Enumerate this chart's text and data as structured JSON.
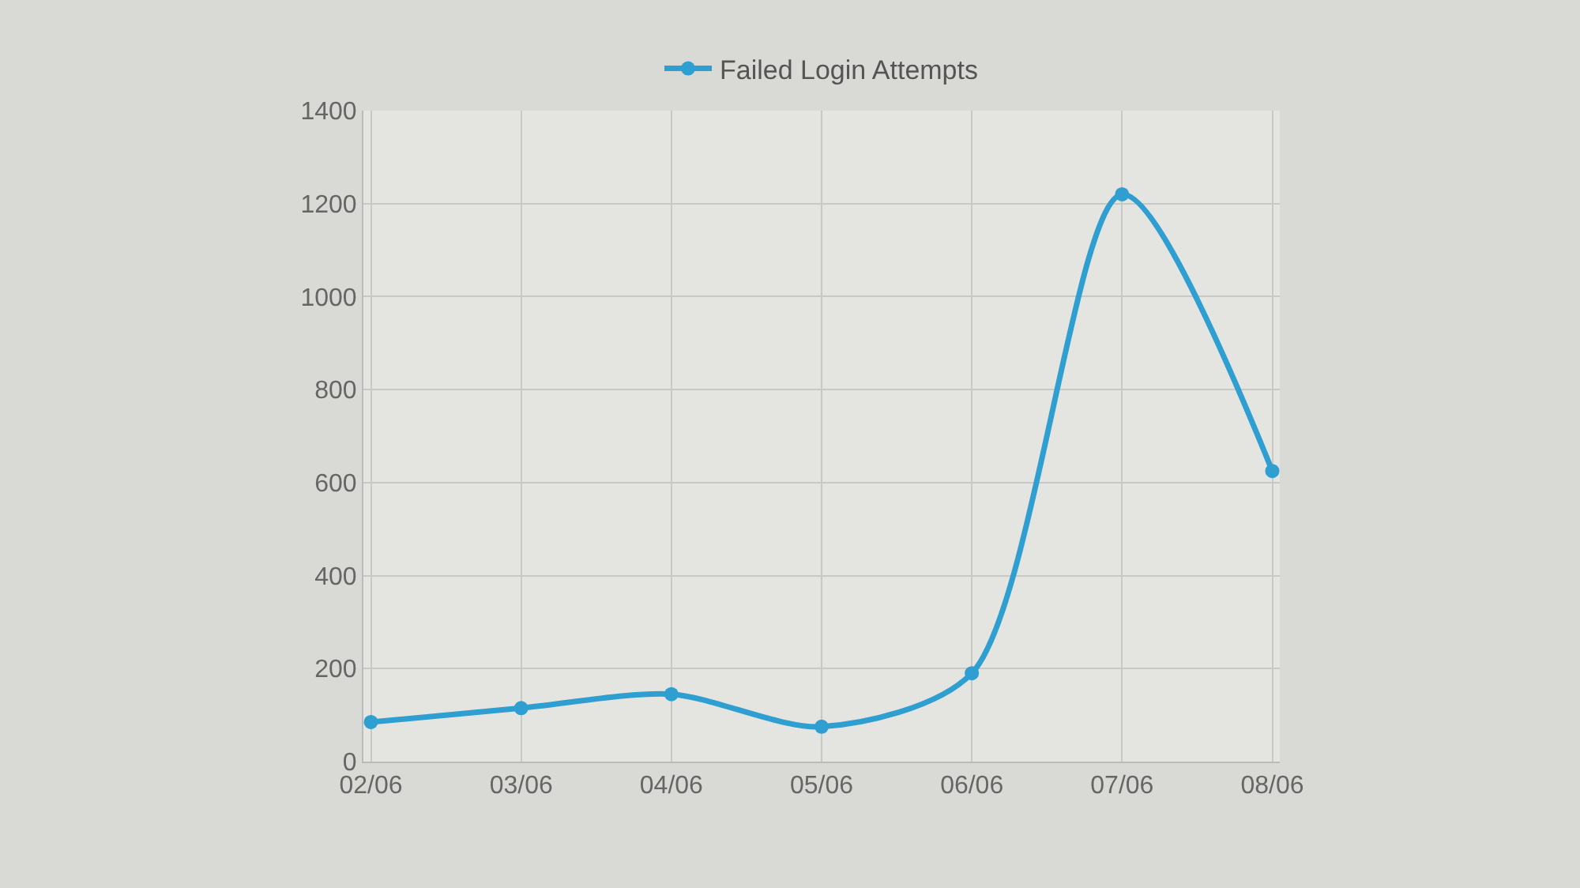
{
  "chart_data": {
    "type": "line",
    "categories": [
      "02/06",
      "03/06",
      "04/06",
      "05/06",
      "06/06",
      "07/06",
      "08/06"
    ],
    "series": [
      {
        "name": "Failed Login Attempts",
        "color": "#2e9fd0",
        "values": [
          85,
          115,
          145,
          75,
          190,
          1220,
          625
        ]
      }
    ],
    "ylim": [
      0,
      1400
    ],
    "yticks": [
      0,
      200,
      400,
      600,
      800,
      1000,
      1200,
      1400
    ],
    "grid": true,
    "legend": "top",
    "marker": "circle"
  }
}
